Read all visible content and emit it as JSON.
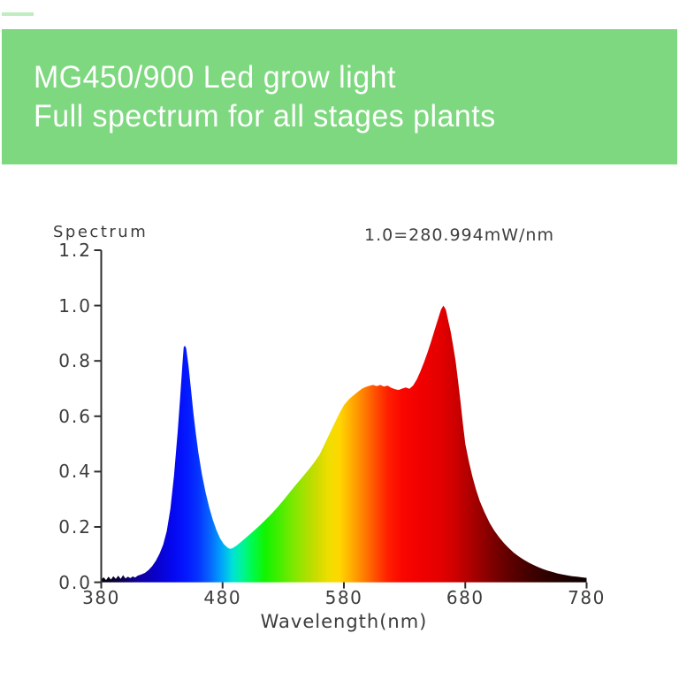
{
  "banner": {
    "bg": "#7ed87f",
    "text_color": "#ffffff",
    "line1": "MG450/900 Led grow light",
    "line2": "Full spectrum for all stages plants"
  },
  "decoration": {
    "corner_dash_color": "#8edc8e"
  },
  "chart_data": {
    "type": "area",
    "title": "",
    "ylabel": "Spectrum",
    "xlabel": "Wavelength(nm)",
    "annotation": "1.0=280.994mW/nm",
    "xlim": [
      380,
      780
    ],
    "ylim": [
      0.0,
      1.2
    ],
    "x_ticks": [
      380,
      480,
      580,
      680,
      780
    ],
    "y_ticks": [
      0.0,
      0.2,
      0.4,
      0.6,
      0.8,
      1.0,
      1.2
    ],
    "grid": "off",
    "legend": "none",
    "axis_color": "#2e2e2e",
    "peaks": [
      {
        "name": "blue-peak",
        "wavelength_nm": 449,
        "value": 0.85
      },
      {
        "name": "red-peak",
        "wavelength_nm": 662,
        "value": 1.0
      }
    ],
    "valley": {
      "name": "cyan-dip",
      "wavelength_nm": 486,
      "value": 0.12
    },
    "series": [
      {
        "name": "relative spectral power",
        "points": [
          [
            380,
            0.01
          ],
          [
            382,
            0.018
          ],
          [
            384,
            0.008
          ],
          [
            386,
            0.02
          ],
          [
            388,
            0.01
          ],
          [
            390,
            0.022
          ],
          [
            392,
            0.012
          ],
          [
            394,
            0.024
          ],
          [
            396,
            0.012
          ],
          [
            398,
            0.026
          ],
          [
            400,
            0.014
          ],
          [
            402,
            0.02
          ],
          [
            404,
            0.015
          ],
          [
            406,
            0.021
          ],
          [
            408,
            0.017
          ],
          [
            410,
            0.024
          ],
          [
            413,
            0.028
          ],
          [
            416,
            0.034
          ],
          [
            419,
            0.044
          ],
          [
            422,
            0.058
          ],
          [
            425,
            0.078
          ],
          [
            428,
            0.103
          ],
          [
            431,
            0.135
          ],
          [
            434,
            0.185
          ],
          [
            437,
            0.265
          ],
          [
            440,
            0.385
          ],
          [
            443,
            0.545
          ],
          [
            445,
            0.665
          ],
          [
            447,
            0.795
          ],
          [
            448,
            0.85
          ],
          [
            449,
            0.855
          ],
          [
            450,
            0.845
          ],
          [
            452,
            0.78
          ],
          [
            454,
            0.695
          ],
          [
            456,
            0.61
          ],
          [
            458,
            0.535
          ],
          [
            460,
            0.47
          ],
          [
            463,
            0.39
          ],
          [
            466,
            0.325
          ],
          [
            469,
            0.27
          ],
          [
            472,
            0.225
          ],
          [
            475,
            0.188
          ],
          [
            478,
            0.158
          ],
          [
            481,
            0.138
          ],
          [
            484,
            0.126
          ],
          [
            486,
            0.121
          ],
          [
            488,
            0.123
          ],
          [
            491,
            0.131
          ],
          [
            494,
            0.142
          ],
          [
            497,
            0.153
          ],
          [
            500,
            0.164
          ],
          [
            505,
            0.183
          ],
          [
            510,
            0.203
          ],
          [
            515,
            0.224
          ],
          [
            520,
            0.246
          ],
          [
            525,
            0.27
          ],
          [
            530,
            0.296
          ],
          [
            535,
            0.323
          ],
          [
            540,
            0.35
          ],
          [
            545,
            0.376
          ],
          [
            550,
            0.402
          ],
          [
            555,
            0.43
          ],
          [
            560,
            0.462
          ],
          [
            564,
            0.498
          ],
          [
            568,
            0.535
          ],
          [
            572,
            0.572
          ],
          [
            576,
            0.608
          ],
          [
            580,
            0.64
          ],
          [
            584,
            0.661
          ],
          [
            588,
            0.676
          ],
          [
            592,
            0.69
          ],
          [
            595,
            0.7
          ],
          [
            598,
            0.706
          ],
          [
            601,
            0.71
          ],
          [
            604,
            0.713
          ],
          [
            607,
            0.709
          ],
          [
            610,
            0.713
          ],
          [
            613,
            0.707
          ],
          [
            616,
            0.711
          ],
          [
            619,
            0.703
          ],
          [
            622,
            0.698
          ],
          [
            625,
            0.695
          ],
          [
            628,
            0.7
          ],
          [
            631,
            0.704
          ],
          [
            634,
            0.699
          ],
          [
            637,
            0.711
          ],
          [
            640,
            0.733
          ],
          [
            643,
            0.762
          ],
          [
            646,
            0.795
          ],
          [
            649,
            0.832
          ],
          [
            652,
            0.872
          ],
          [
            655,
            0.915
          ],
          [
            658,
            0.958
          ],
          [
            660,
            0.985
          ],
          [
            662,
            1.0
          ],
          [
            664,
            0.985
          ],
          [
            666,
            0.945
          ],
          [
            668,
            0.905
          ],
          [
            670,
            0.855
          ],
          [
            672,
            0.8
          ],
          [
            674,
            0.73
          ],
          [
            676,
            0.655
          ],
          [
            678,
            0.575
          ],
          [
            680,
            0.5
          ],
          [
            683,
            0.435
          ],
          [
            686,
            0.38
          ],
          [
            689,
            0.333
          ],
          [
            692,
            0.293
          ],
          [
            696,
            0.252
          ],
          [
            700,
            0.215
          ],
          [
            704,
            0.186
          ],
          [
            708,
            0.162
          ],
          [
            712,
            0.141
          ],
          [
            716,
            0.123
          ],
          [
            720,
            0.107
          ],
          [
            724,
            0.094
          ],
          [
            728,
            0.082
          ],
          [
            732,
            0.072
          ],
          [
            736,
            0.063
          ],
          [
            740,
            0.055
          ],
          [
            744,
            0.048
          ],
          [
            748,
            0.042
          ],
          [
            752,
            0.037
          ],
          [
            756,
            0.032
          ],
          [
            760,
            0.028
          ],
          [
            764,
            0.025
          ],
          [
            768,
            0.022
          ],
          [
            772,
            0.02
          ],
          [
            776,
            0.018
          ],
          [
            780,
            0.016
          ]
        ]
      }
    ],
    "spectrum_gradient": [
      {
        "wl": 380,
        "color": "#060009"
      },
      {
        "wl": 395,
        "color": "#0a0040"
      },
      {
        "wl": 410,
        "color": "#10009a"
      },
      {
        "wl": 425,
        "color": "#0a00c8"
      },
      {
        "wl": 440,
        "color": "#0508f2"
      },
      {
        "wl": 450,
        "color": "#0418ff"
      },
      {
        "wl": 460,
        "color": "#0534ff"
      },
      {
        "wl": 470,
        "color": "#0668ff"
      },
      {
        "wl": 480,
        "color": "#00aaf8"
      },
      {
        "wl": 488,
        "color": "#00e0d8"
      },
      {
        "wl": 496,
        "color": "#00f49a"
      },
      {
        "wl": 505,
        "color": "#00fa48"
      },
      {
        "wl": 515,
        "color": "#12f400"
      },
      {
        "wl": 527,
        "color": "#46ee00"
      },
      {
        "wl": 538,
        "color": "#7ce800"
      },
      {
        "wl": 549,
        "color": "#abe000"
      },
      {
        "wl": 558,
        "color": "#cedb00"
      },
      {
        "wl": 567,
        "color": "#eede00"
      },
      {
        "wl": 576,
        "color": "#fed800"
      },
      {
        "wl": 586,
        "color": "#ffae00"
      },
      {
        "wl": 596,
        "color": "#ff8000"
      },
      {
        "wl": 606,
        "color": "#ff4e00"
      },
      {
        "wl": 616,
        "color": "#ff2000"
      },
      {
        "wl": 628,
        "color": "#fa0600"
      },
      {
        "wl": 645,
        "color": "#ef0000"
      },
      {
        "wl": 660,
        "color": "#e30000"
      },
      {
        "wl": 672,
        "color": "#cd0000"
      },
      {
        "wl": 685,
        "color": "#ab0000"
      },
      {
        "wl": 700,
        "color": "#840000"
      },
      {
        "wl": 715,
        "color": "#620000"
      },
      {
        "wl": 730,
        "color": "#470000"
      },
      {
        "wl": 745,
        "color": "#310000"
      },
      {
        "wl": 760,
        "color": "#200000"
      },
      {
        "wl": 772,
        "color": "#150000"
      },
      {
        "wl": 780,
        "color": "#0e0002"
      }
    ]
  }
}
